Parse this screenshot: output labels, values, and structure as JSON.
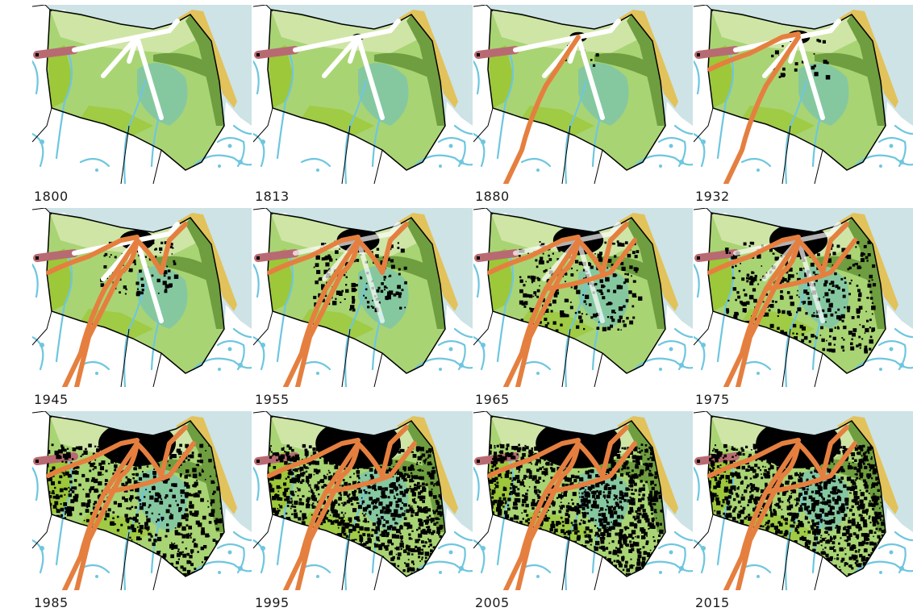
{
  "years": [
    "1800",
    "1813",
    "1880",
    "1932",
    "1945",
    "1955",
    "1965",
    "1975",
    "1985",
    "1995",
    "2005",
    "2015"
  ],
  "colors": {
    "sea": "#cde3e6",
    "land": "#ffffff",
    "dune": "#e2c25a",
    "coastal_green": "#6e9e3f",
    "light_green": "#cfe5a6",
    "mid_green": "#a9d474",
    "bright_green": "#9cc83a",
    "teal": "#7fc5a8",
    "water": "#6ec6df",
    "urban": "#000000",
    "historic_road": "#ffffff",
    "modern_road": "#e57f3f",
    "old_road": "#b86a72",
    "boundary": "#000000"
  }
}
